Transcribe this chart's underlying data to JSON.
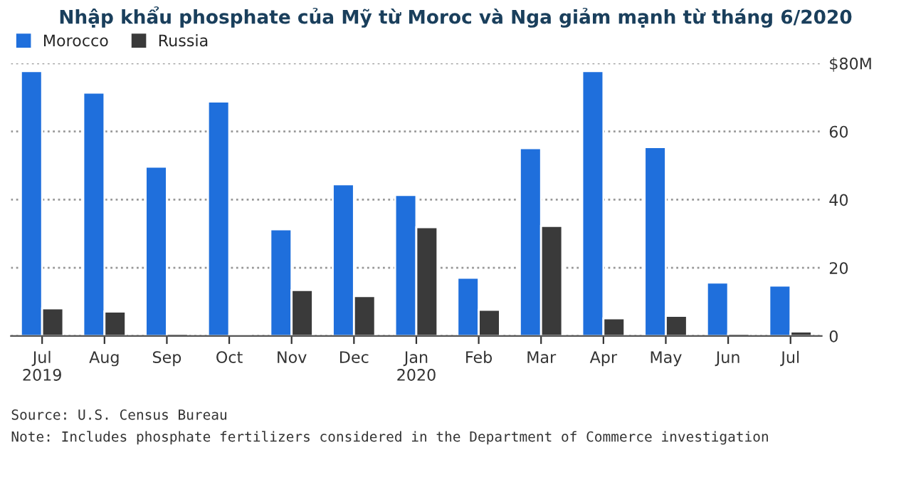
{
  "chart_data": {
    "type": "bar",
    "title": "Nhập khẩu phosphate của Mỹ từ Moroc và Nga giảm mạnh từ tháng 6/2020",
    "categories": [
      "Jul\n2019",
      "Aug",
      "Sep",
      "Oct",
      "Nov",
      "Dec",
      "Jan\n2020",
      "Feb",
      "Mar",
      "Apr",
      "May",
      "Jun",
      "Jul"
    ],
    "series": [
      {
        "name": "Morocco",
        "color": "#1f6fdc",
        "values": [
          77.7,
          71.4,
          49.7,
          68.8,
          31.3,
          44.5,
          41.4,
          17.1,
          55.1,
          77.7,
          55.4,
          15.7,
          14.8
        ]
      },
      {
        "name": "Russia",
        "color": "#3a3a3a",
        "values": [
          8.1,
          7.2,
          0.7,
          0.3,
          13.5,
          11.7,
          31.9,
          7.7,
          32.3,
          5.2,
          5.9,
          0.7,
          1.3
        ]
      }
    ],
    "ylim": [
      0,
      80
    ],
    "yticks": [
      {
        "value": 0,
        "label": "0"
      },
      {
        "value": 20,
        "label": "20"
      },
      {
        "value": 40,
        "label": "40"
      },
      {
        "value": 60,
        "label": "60"
      },
      {
        "value": 80,
        "label": "$80M"
      }
    ],
    "grid": "y",
    "legend": "top left",
    "annotations": [
      "Source: U.S. Census Bureau",
      "Note: Includes phosphate fertilizers considered in the Department of Commerce investigation"
    ]
  }
}
